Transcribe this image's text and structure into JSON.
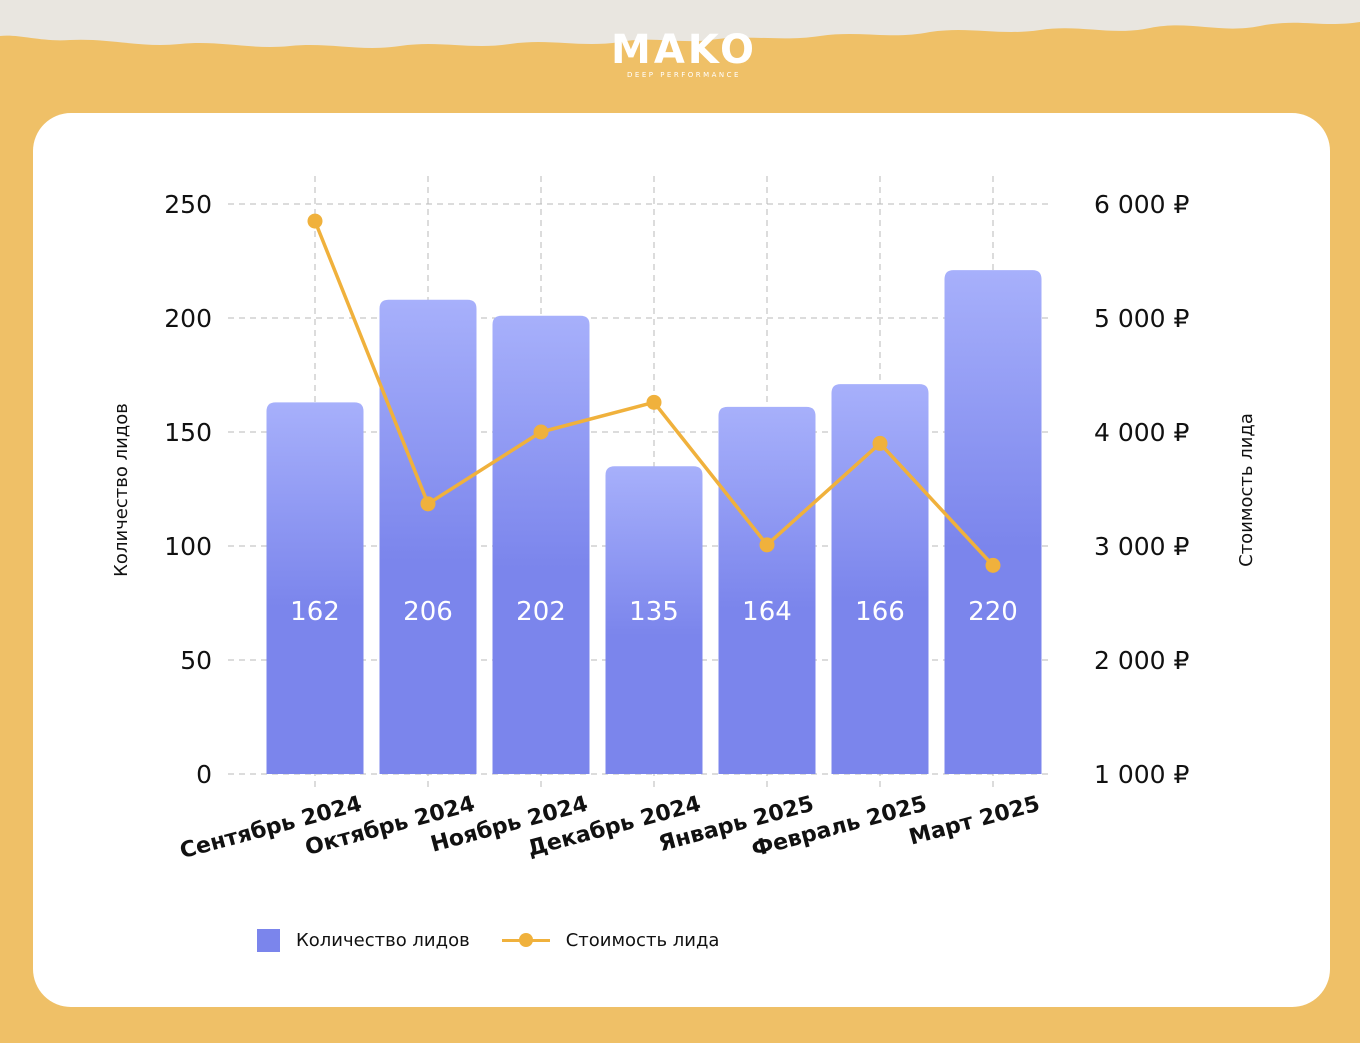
{
  "brand": {
    "name": "MAKO",
    "tagline": "DEEP PERFORMANCE"
  },
  "colors": {
    "background": "#efc067",
    "bar_top": "#a7b0fb",
    "bar": "#7b85ec",
    "line": "#f0b13c",
    "card": "#ffffff"
  },
  "chart_data": {
    "type": "bar",
    "categories": [
      "Сентябрь 2024",
      "Октябрь 2024",
      "Ноябрь 2024",
      "Декабрь 2024",
      "Январь 2025",
      "Февраль 2025",
      "Март 2025"
    ],
    "series": [
      {
        "name": "Количество лидов",
        "type": "bar",
        "axis": "left",
        "values": [
          162,
          206,
          202,
          135,
          164,
          166,
          220
        ],
        "bar_heights_read": [
          163,
          208,
          201,
          135,
          161,
          171,
          221
        ]
      },
      {
        "name": "Стоимость лида",
        "type": "line",
        "axis": "right",
        "values": [
          5850,
          3370,
          4000,
          4260,
          3010,
          3900,
          2830
        ]
      }
    ],
    "ylabel": "Количество лидов",
    "ylim": [
      0,
      250
    ],
    "yticks": [
      "0",
      "50",
      "100",
      "150",
      "200",
      "250"
    ],
    "y2label": "Стоимость лида",
    "y2lim": [
      1000,
      6000
    ],
    "y2ticks": [
      "1 000 ₽",
      "2 000 ₽",
      "3 000 ₽",
      "4 000 ₽",
      "5 000 ₽",
      "6 000 ₽"
    ],
    "grid": true,
    "legend_position": "bottom-left"
  }
}
